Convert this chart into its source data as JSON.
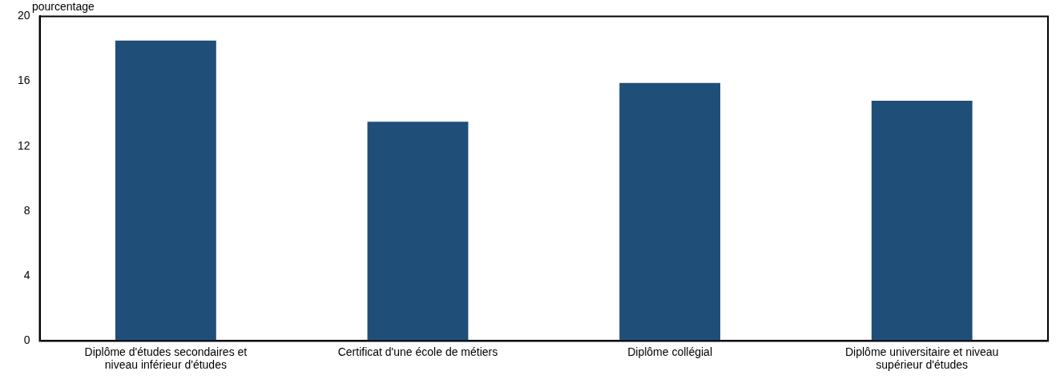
{
  "chart_data": {
    "type": "bar",
    "ylabel": "pourcentage",
    "categories": [
      [
        "Diplôme d'études secondaires et",
        "niveau inférieur d'études"
      ],
      "Certificat d'une école de métiers",
      "Diplôme collégial",
      [
        "Diplôme universitaire et niveau",
        "supérieur d'études"
      ]
    ],
    "values": [
      18.5,
      13.5,
      15.9,
      14.8
    ],
    "color": "#1f4e79",
    "ylim": [
      0,
      20
    ],
    "yticks": [
      0,
      4,
      8,
      12,
      16,
      20
    ],
    "grid": false,
    "legend": false
  }
}
